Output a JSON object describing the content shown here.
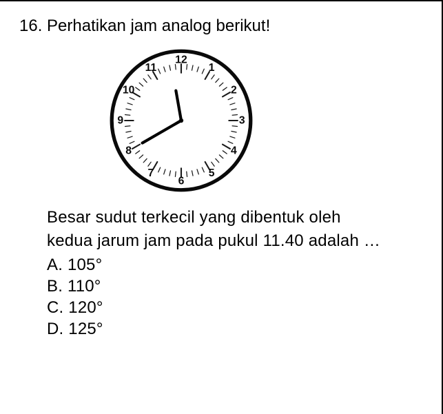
{
  "question": {
    "number": "16.",
    "prompt": "Perhatikan jam analog berikut!",
    "body_line1": "Besar sudut terkecil yang dibentuk oleh",
    "body_line2": "kedua jarum jam pada pukul 11.40 adalah …",
    "options": {
      "a": "A. 105°",
      "b": "B. 110°",
      "c": "C. 120°",
      "d": "D. 125°"
    }
  },
  "clock": {
    "type": "analog-clock",
    "time": "11:40",
    "outer_radius": 96,
    "inner_band_outer": 78,
    "inner_band_inner": 58,
    "number_radius": 84,
    "outer_stroke": "#0a0a0a",
    "outer_stroke_width": 5,
    "tick_color": "#1a1a1a",
    "major_tick_len": 12,
    "minor_tick_len": 7,
    "number_fontsize": 15,
    "number_color": "#0a0a0a",
    "pivot_radius": 3,
    "hands": {
      "minute": {
        "angle_deg": 240,
        "length": 62,
        "width": 4,
        "color": "#000000"
      },
      "hour": {
        "angle_deg": 350,
        "length": 42,
        "width": 4,
        "color": "#000000"
      }
    },
    "numbers": [
      "12",
      "1",
      "2",
      "3",
      "4",
      "5",
      "6",
      "7",
      "8",
      "9",
      "10",
      "11"
    ],
    "background": "#ffffff"
  }
}
